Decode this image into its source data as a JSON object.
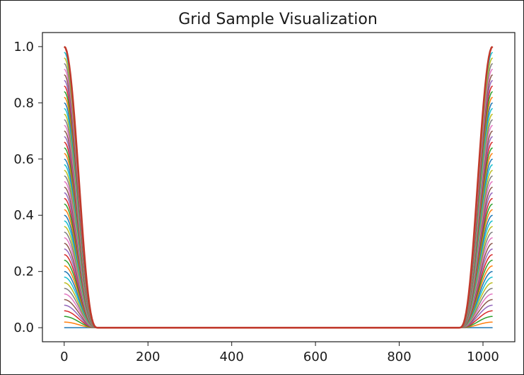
{
  "chart_data": {
    "type": "line",
    "title": "Grid Sample Visualization",
    "xlabel": "",
    "ylabel": "",
    "xlim": [
      -52,
      1076
    ],
    "ylim": [
      -0.05,
      1.05
    ],
    "x_ticks": [
      0,
      200,
      400,
      600,
      800,
      1000
    ],
    "x_tick_labels": [
      "0",
      "200",
      "400",
      "600",
      "800",
      "1000"
    ],
    "y_ticks": [
      0.0,
      0.2,
      0.4,
      0.6,
      0.8,
      1.0
    ],
    "y_tick_labels": [
      "0.0",
      "0.2",
      "0.4",
      "0.6",
      "0.8",
      "1.0"
    ],
    "grid": false,
    "legend": "none",
    "x_range": [
      0,
      1023
    ],
    "series_description": "Many overlapping curves (matplotlib default color cycle). Each curve is 0 across the middle and rises steeply at both ends; the curve peaks range from about 0.0 up to 1.0 at x=0 and x=1023.",
    "peak_values": [
      1.0,
      0.98,
      0.96,
      0.94,
      0.92,
      0.9,
      0.88,
      0.86,
      0.84,
      0.82,
      0.8,
      0.78,
      0.76,
      0.74,
      0.72,
      0.7,
      0.68,
      0.66,
      0.64,
      0.62,
      0.6,
      0.58,
      0.56,
      0.54,
      0.52,
      0.5,
      0.48,
      0.46,
      0.44,
      0.42,
      0.4,
      0.38,
      0.36,
      0.34,
      0.32,
      0.3,
      0.28,
      0.26,
      0.24,
      0.22,
      0.2,
      0.18,
      0.16,
      0.14,
      0.12,
      0.1,
      0.08,
      0.06,
      0.04,
      0.02,
      0.0
    ],
    "edge_width": 80,
    "colors": [
      "#1f77b4",
      "#ff7f0e",
      "#2ca02c",
      "#d62728",
      "#9467bd",
      "#8c564b",
      "#e377c2",
      "#7f7f7f",
      "#bcbd22",
      "#17becf"
    ],
    "top_series_color": "#c0392b"
  }
}
